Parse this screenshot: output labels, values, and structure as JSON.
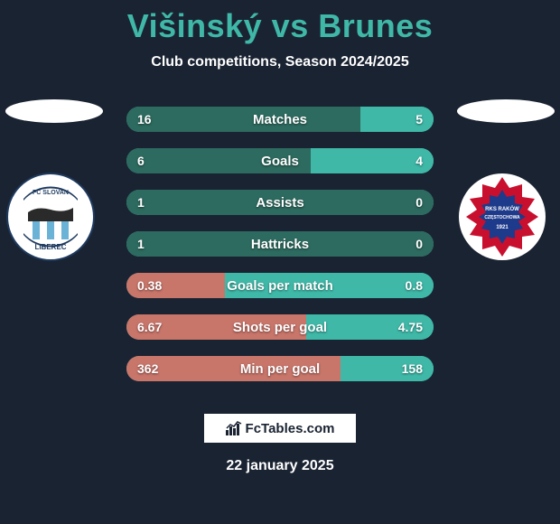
{
  "title": "Višinský vs Brunes",
  "subtitle": "Club competitions, Season 2024/2025",
  "footer_date": "22 january 2025",
  "footer_brand": "FcTables.com",
  "background_color": "#1a2332",
  "accent_color": "#3fb8a8",
  "left_team": {
    "name": "FC Slovan Liberec",
    "crest_color_primary": "#ffffff",
    "crest_color_secondary": "#6bb3d6",
    "crest_text_color": "#1e3a5f"
  },
  "right_team": {
    "name": "RKS Raków Częstochowa",
    "crest_color_primary": "#c8102e",
    "crest_color_secondary": "#1e3a8a",
    "crest_text_color": "#ffffff"
  },
  "bars": [
    {
      "label": "Matches",
      "left": "16",
      "right": "5",
      "left_pct": 76.2,
      "right_pct": 23.8,
      "left_color": "#2d6a5f",
      "right_color": "#3fb8a8"
    },
    {
      "label": "Goals",
      "left": "6",
      "right": "4",
      "left_pct": 60.0,
      "right_pct": 40.0,
      "left_color": "#2d6a5f",
      "right_color": "#3fb8a8"
    },
    {
      "label": "Assists",
      "left": "1",
      "right": "0",
      "left_pct": 100,
      "right_pct": 0,
      "left_color": "#2d6a5f",
      "right_color": "#3fb8a8"
    },
    {
      "label": "Hattricks",
      "left": "1",
      "right": "0",
      "left_pct": 100,
      "right_pct": 0,
      "left_color": "#2d6a5f",
      "right_color": "#3fb8a8"
    },
    {
      "label": "Goals per match",
      "left": "0.38",
      "right": "0.8",
      "left_pct": 32.2,
      "right_pct": 67.8,
      "left_color": "#c8756a",
      "right_color": "#3fb8a8"
    },
    {
      "label": "Shots per goal",
      "left": "6.67",
      "right": "4.75",
      "left_pct": 58.4,
      "right_pct": 41.6,
      "left_color": "#c8756a",
      "right_color": "#3fb8a8"
    },
    {
      "label": "Min per goal",
      "left": "362",
      "right": "158",
      "left_pct": 69.6,
      "right_pct": 30.4,
      "left_color": "#c8756a",
      "right_color": "#3fb8a8"
    }
  ]
}
